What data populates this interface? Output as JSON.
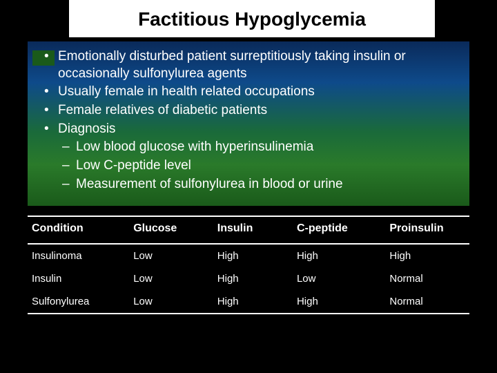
{
  "title": "Factitious Hypoglycemia",
  "title_fontsize": 28,
  "bullet_fontsize": 19,
  "table_header_fontsize": 16,
  "table_cell_fontsize": 15,
  "colors": {
    "page_bg": "#000000",
    "title_bg": "#ffffff",
    "title_text": "#000000",
    "body_text": "#ffffff",
    "accent_box": "#1a5a1a",
    "gradient_top": "#0a2a5a",
    "gradient_mid1": "#0e4a8a",
    "gradient_mid2": "#1a6a3a",
    "gradient_bottom": "#1a5a1a",
    "table_border": "#ffffff"
  },
  "bullets": {
    "b0": "Emotionally disturbed patient surreptitiously taking insulin or occasionally sulfonylurea agents",
    "b1": "Usually female in health related occupations",
    "b2": "Female relatives of diabetic patients",
    "b3": "Diagnosis",
    "b3s0": "Low blood glucose with hyperinsulinemia",
    "b3s1": "Low C-peptide level",
    "b3s2": "Measurement of sulfonylurea in blood or urine"
  },
  "table": {
    "headers": {
      "h0": "Condition",
      "h1": "Glucose",
      "h2": "Insulin",
      "h3": "C-peptide",
      "h4": "Proinsulin"
    },
    "r0": {
      "c0": "Insulinoma",
      "c1": "Low",
      "c2": "High",
      "c3": "High",
      "c4": "High"
    },
    "r1": {
      "c0": "Insulin",
      "c1": "Low",
      "c2": "High",
      "c3": "Low",
      "c4": "Normal"
    },
    "r2": {
      "c0": "Sulfonylurea",
      "c1": "Low",
      "c2": "High",
      "c3": "High",
      "c4": "Normal"
    }
  }
}
